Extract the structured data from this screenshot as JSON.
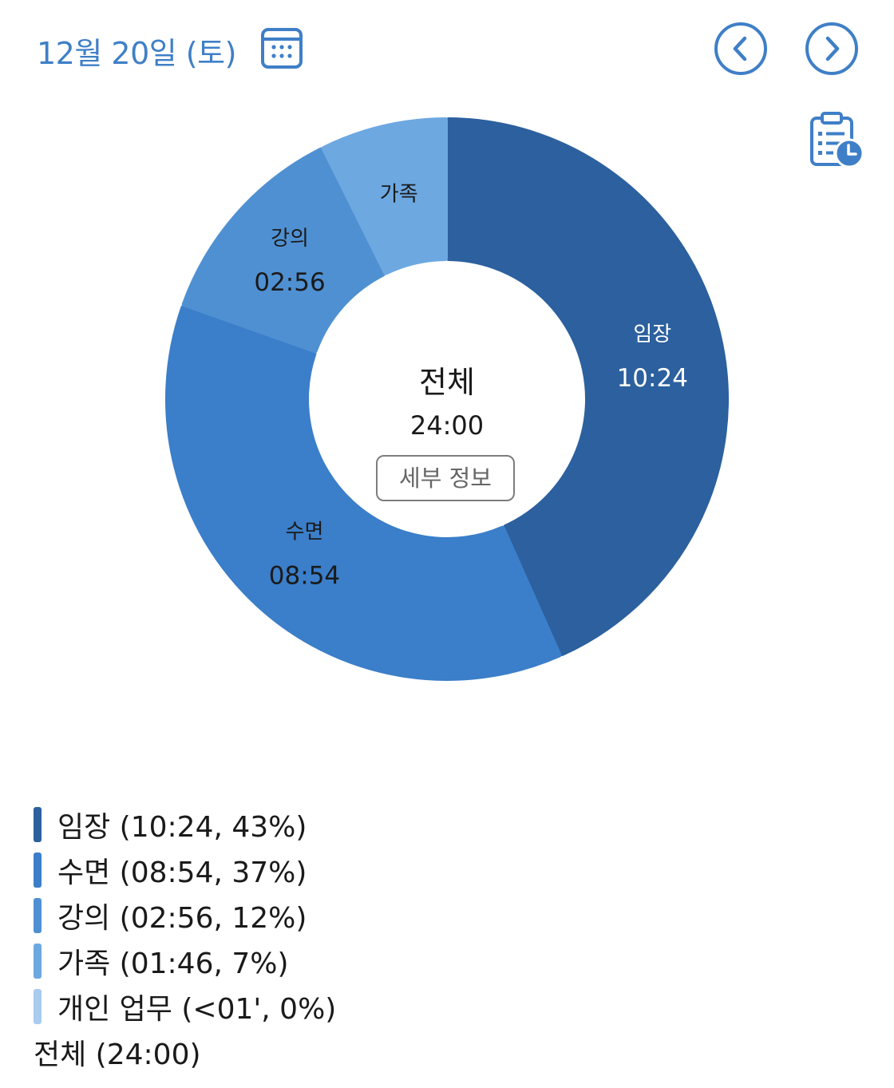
{
  "header": {
    "date": "12월 20일 (토)",
    "calendar_icon": "calendar-icon",
    "prev_icon": "chevron-left-circle-icon",
    "next_icon": "chevron-right-circle-icon",
    "clipboard_icon": "clipboard-clock-icon"
  },
  "center": {
    "title": "전체",
    "total": "24:00",
    "detail_button": "세부 정보"
  },
  "chart_data": {
    "type": "pie",
    "title": "",
    "slices": [
      {
        "name": "임장",
        "time": "10:24",
        "value": 624,
        "percent": 43,
        "color": "#2c609e",
        "label_color": "#ffffff"
      },
      {
        "name": "수면",
        "time": "08:54",
        "value": 534,
        "percent": 37,
        "color": "#3b7ec9",
        "label_color": "#1a1a1a"
      },
      {
        "name": "강의",
        "time": "02:56",
        "value": 176,
        "percent": 12,
        "color": "#4f90d2",
        "label_color": "#1a1a1a"
      },
      {
        "name": "가족",
        "time": "01:46",
        "value": 106,
        "percent": 7,
        "color": "#6da8e1",
        "label_color": "#1a1a1a"
      },
      {
        "name": "개인 업무",
        "time": "<01'",
        "value": 0,
        "percent": 0,
        "color": "#a9cbee",
        "label_color": "#1a1a1a"
      }
    ]
  },
  "legend": {
    "items": [
      {
        "text": "임장 (10:24, 43%)",
        "color": "#2c609e"
      },
      {
        "text": "수면 (08:54, 37%)",
        "color": "#3b7ec9"
      },
      {
        "text": "강의 (02:56, 12%)",
        "color": "#4f90d2"
      },
      {
        "text": "가족 (01:46, 7%)",
        "color": "#6da8e1"
      },
      {
        "text": "개인 업무 (<01', 0%)",
        "color": "#a9cbee"
      }
    ],
    "total": "전체 (24:00)"
  }
}
